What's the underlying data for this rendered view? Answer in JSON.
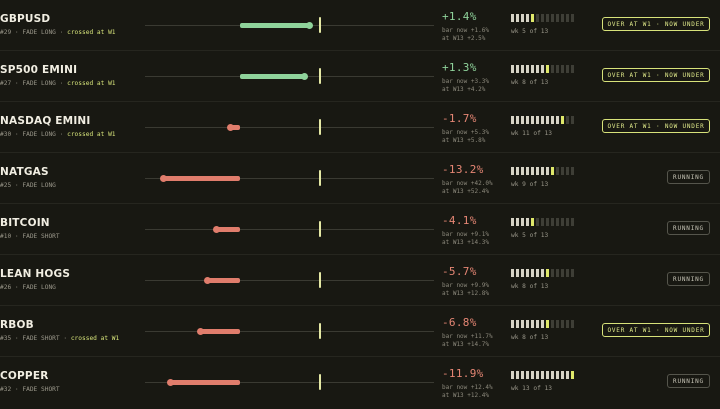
{
  "rows": [
    {
      "name": "GBPUSD",
      "rank": "#29",
      "mode": "FADE LONG",
      "cross_note": "crossed at W1",
      "change": "+1.4%",
      "change_value": 1.4,
      "sub1": "bar now +1.6%",
      "sub2": "at W13 +2.5%",
      "week": 5,
      "weeks_total": 13,
      "week_label": "wk 5 of 13",
      "status": "OVER AT W1 · NOW UNDER",
      "status_kind": "over"
    },
    {
      "name": "SP500 EMINI",
      "rank": "#27",
      "mode": "FADE LONG",
      "cross_note": "crossed at W1",
      "change": "+1.3%",
      "change_value": 1.3,
      "sub1": "bar now +3.3%",
      "sub2": "at W13 +4.2%",
      "week": 8,
      "weeks_total": 13,
      "week_label": "wk 8 of 13",
      "status": "OVER AT W1 · NOW UNDER",
      "status_kind": "over"
    },
    {
      "name": "NASDAQ EMINI",
      "rank": "#30",
      "mode": "FADE LONG",
      "cross_note": "crossed at W1",
      "change": "-1.7%",
      "change_value": -1.7,
      "sub1": "bar now +5.3%",
      "sub2": "at W13 +5.8%",
      "week": 11,
      "weeks_total": 13,
      "week_label": "wk 11 of 13",
      "status": "OVER AT W1 · NOW UNDER",
      "status_kind": "over"
    },
    {
      "name": "NATGAS",
      "rank": "#25",
      "mode": "FADE LONG",
      "cross_note": "",
      "change": "-13.2%",
      "change_value": -13.2,
      "sub1": "bar now +42.0%",
      "sub2": "at W13 +52.4%",
      "week": 9,
      "weeks_total": 13,
      "week_label": "wk 9 of 13",
      "status": "RUNNING",
      "status_kind": "running"
    },
    {
      "name": "BITCOIN",
      "rank": "#10",
      "mode": "FADE SHORT",
      "cross_note": "",
      "change": "-4.1%",
      "change_value": -4.1,
      "sub1": "bar now +9.1%",
      "sub2": "at W13 +14.3%",
      "week": 5,
      "weeks_total": 13,
      "week_label": "wk 5 of 13",
      "status": "RUNNING",
      "status_kind": "running"
    },
    {
      "name": "LEAN HOGS",
      "rank": "#26",
      "mode": "FADE LONG",
      "cross_note": "",
      "change": "-5.7%",
      "change_value": -5.7,
      "sub1": "bar now +9.9%",
      "sub2": "at W13 +12.8%",
      "week": 8,
      "weeks_total": 13,
      "week_label": "wk 8 of 13",
      "status": "RUNNING",
      "status_kind": "running"
    },
    {
      "name": "RBOB",
      "rank": "#35",
      "mode": "FADE SHORT",
      "cross_note": "crossed at W1",
      "change": "-6.8%",
      "change_value": -6.8,
      "sub1": "bar now +11.7%",
      "sub2": "at W13 +14.7%",
      "week": 8,
      "weeks_total": 13,
      "week_label": "wk 8 of 13",
      "status": "OVER AT W1 · NOW UNDER",
      "status_kind": "over"
    },
    {
      "name": "COPPER",
      "rank": "#32",
      "mode": "FADE SHORT",
      "cross_note": "",
      "change": "-11.9%",
      "change_value": -11.9,
      "sub1": "bar now +12.4%",
      "sub2": "at W13 +12.4%",
      "week": 13,
      "weeks_total": 13,
      "week_label": "wk 13 of 13",
      "status": "RUNNING",
      "status_kind": "running"
    }
  ],
  "colors": {
    "positive": "#8fd39b",
    "negative": "#e07d6c",
    "accent": "#dfe86a",
    "background": "#181812"
  }
}
